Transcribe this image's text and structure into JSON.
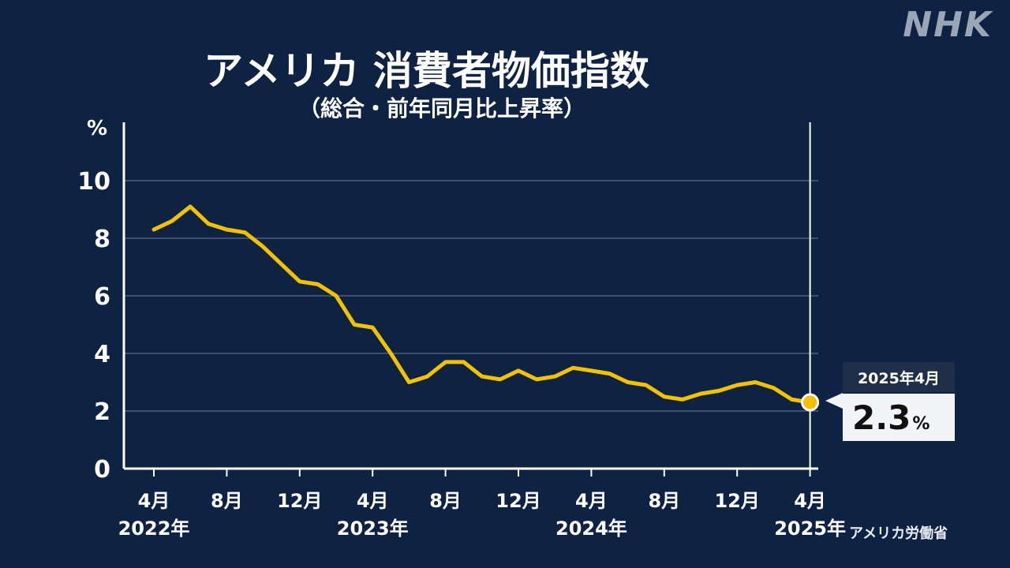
{
  "logo": "NHK",
  "chart_data": {
    "type": "line",
    "title": "アメリカ 消費者物価指数",
    "subtitle": "（総合・前年同月比上昇率）",
    "ylabel": "%",
    "ylim": [
      0,
      10
    ],
    "yticks": [
      0,
      2,
      4,
      6,
      8,
      10
    ],
    "grid": true,
    "x_tick_labels": [
      {
        "index": 0,
        "month": "4月",
        "year": "2022年"
      },
      {
        "index": 4,
        "month": "8月",
        "year": ""
      },
      {
        "index": 8,
        "month": "12月",
        "year": ""
      },
      {
        "index": 12,
        "month": "4月",
        "year": "2023年"
      },
      {
        "index": 16,
        "month": "8月",
        "year": ""
      },
      {
        "index": 20,
        "month": "12月",
        "year": ""
      },
      {
        "index": 24,
        "month": "4月",
        "year": "2024年"
      },
      {
        "index": 28,
        "month": "8月",
        "year": ""
      },
      {
        "index": 32,
        "month": "12月",
        "year": ""
      },
      {
        "index": 36,
        "month": "4月",
        "year": "2025年"
      }
    ],
    "series": [
      {
        "name": "",
        "color": "#f2c200",
        "values": [
          8.3,
          8.6,
          9.1,
          8.5,
          8.3,
          8.2,
          7.7,
          7.1,
          6.5,
          6.4,
          6.0,
          5.0,
          4.9,
          4.0,
          3.0,
          3.2,
          3.7,
          3.7,
          3.2,
          3.1,
          3.4,
          3.1,
          3.2,
          3.5,
          3.4,
          3.3,
          3.0,
          2.9,
          2.5,
          2.4,
          2.6,
          2.7,
          2.9,
          3.0,
          2.8,
          2.4,
          2.3
        ]
      }
    ],
    "highlight": {
      "label": "2025年4月",
      "value": "2.3",
      "unit": "%"
    },
    "source": "アメリカ労働省"
  }
}
